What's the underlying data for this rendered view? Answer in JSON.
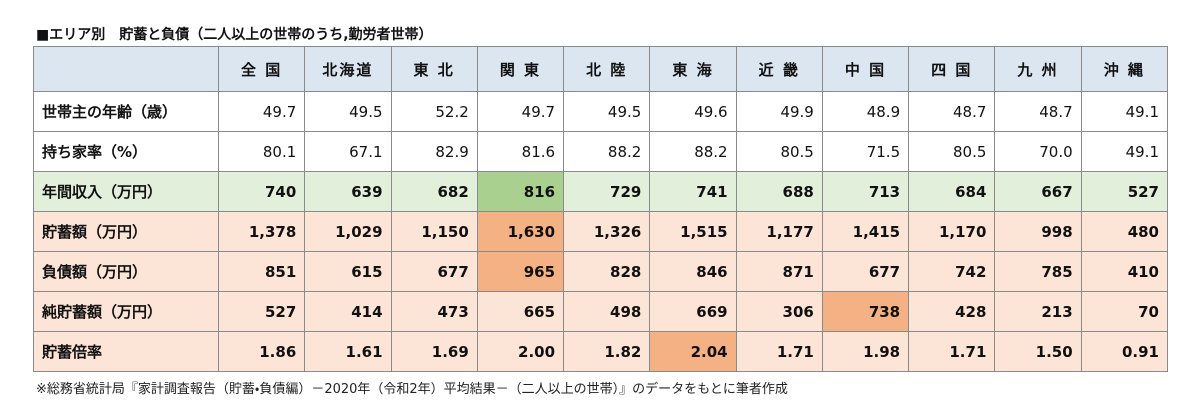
{
  "title": "■エリア別　貯蓄と負債（二人以上の世帯のうち,勤労者世帯）",
  "table": {
    "header": [
      "全 国",
      "北海道",
      "東 北",
      "関 東",
      "北 陸",
      "東 海",
      "近 畿",
      "中 国",
      "四 国",
      "九 州",
      "沖 縄"
    ],
    "rows": [
      {
        "label": "世帯主の年齢（歳）",
        "values": [
          "49.7",
          "49.5",
          "52.2",
          "49.7",
          "49.5",
          "49.6",
          "49.9",
          "48.9",
          "48.7",
          "48.7",
          "49.1"
        ],
        "color": "#ffffff",
        "bold": false
      },
      {
        "label": "持ち家率（%）",
        "values": [
          "80.1",
          "67.1",
          "82.9",
          "81.6",
          "88.2",
          "88.2",
          "80.5",
          "71.5",
          "80.5",
          "70.0",
          "49.1"
        ],
        "color": "#ffffff",
        "bold": false
      },
      {
        "label": "年間収入（万円）",
        "values": [
          "740",
          "639",
          "682",
          "816",
          "729",
          "741",
          "688",
          "713",
          "684",
          "667",
          "527"
        ],
        "color": "#e2efda",
        "bold": true,
        "highlight": 3,
        "highlight_color": "#a9d08e"
      },
      {
        "label": "貯蓄額（万円）",
        "values": [
          "1,378",
          "1,029",
          "1,150",
          "1,630",
          "1,326",
          "1,515",
          "1,177",
          "1,415",
          "1,170",
          "998",
          "480"
        ],
        "color": "#fce4d6",
        "bold": true,
        "highlight": 3,
        "highlight_color": "#f4b183"
      },
      {
        "label": "負債額（万円）",
        "values": [
          "851",
          "615",
          "677",
          "965",
          "828",
          "846",
          "871",
          "677",
          "742",
          "785",
          "410"
        ],
        "color": "#fce4d6",
        "bold": true,
        "highlight": 3,
        "highlight_color": "#f4b183"
      },
      {
        "label": "純貯蓄額（万円）",
        "values": [
          "527",
          "414",
          "473",
          "665",
          "498",
          "669",
          "306",
          "738",
          "428",
          "213",
          "70"
        ],
        "color": "#fce4d6",
        "bold": true,
        "highlight": 7,
        "highlight_color": "#f4b183"
      },
      {
        "label": "貯蓄倍率",
        "values": [
          "1.86",
          "1.61",
          "1.69",
          "2.00",
          "1.82",
          "2.04",
          "1.71",
          "1.98",
          "1.71",
          "1.50",
          "0.91"
        ],
        "color": "#fce4d6",
        "bold": true,
        "highlight": 5,
        "highlight_color": "#f4b183"
      }
    ],
    "header_color": "#dce6f1"
  },
  "footnote": "※総務省統計局『家計調査報告（貯蓄・負債編）－2020年（令和2年）平均結果－（二人以上の世帯）』のデータをもとに筆者作成"
}
